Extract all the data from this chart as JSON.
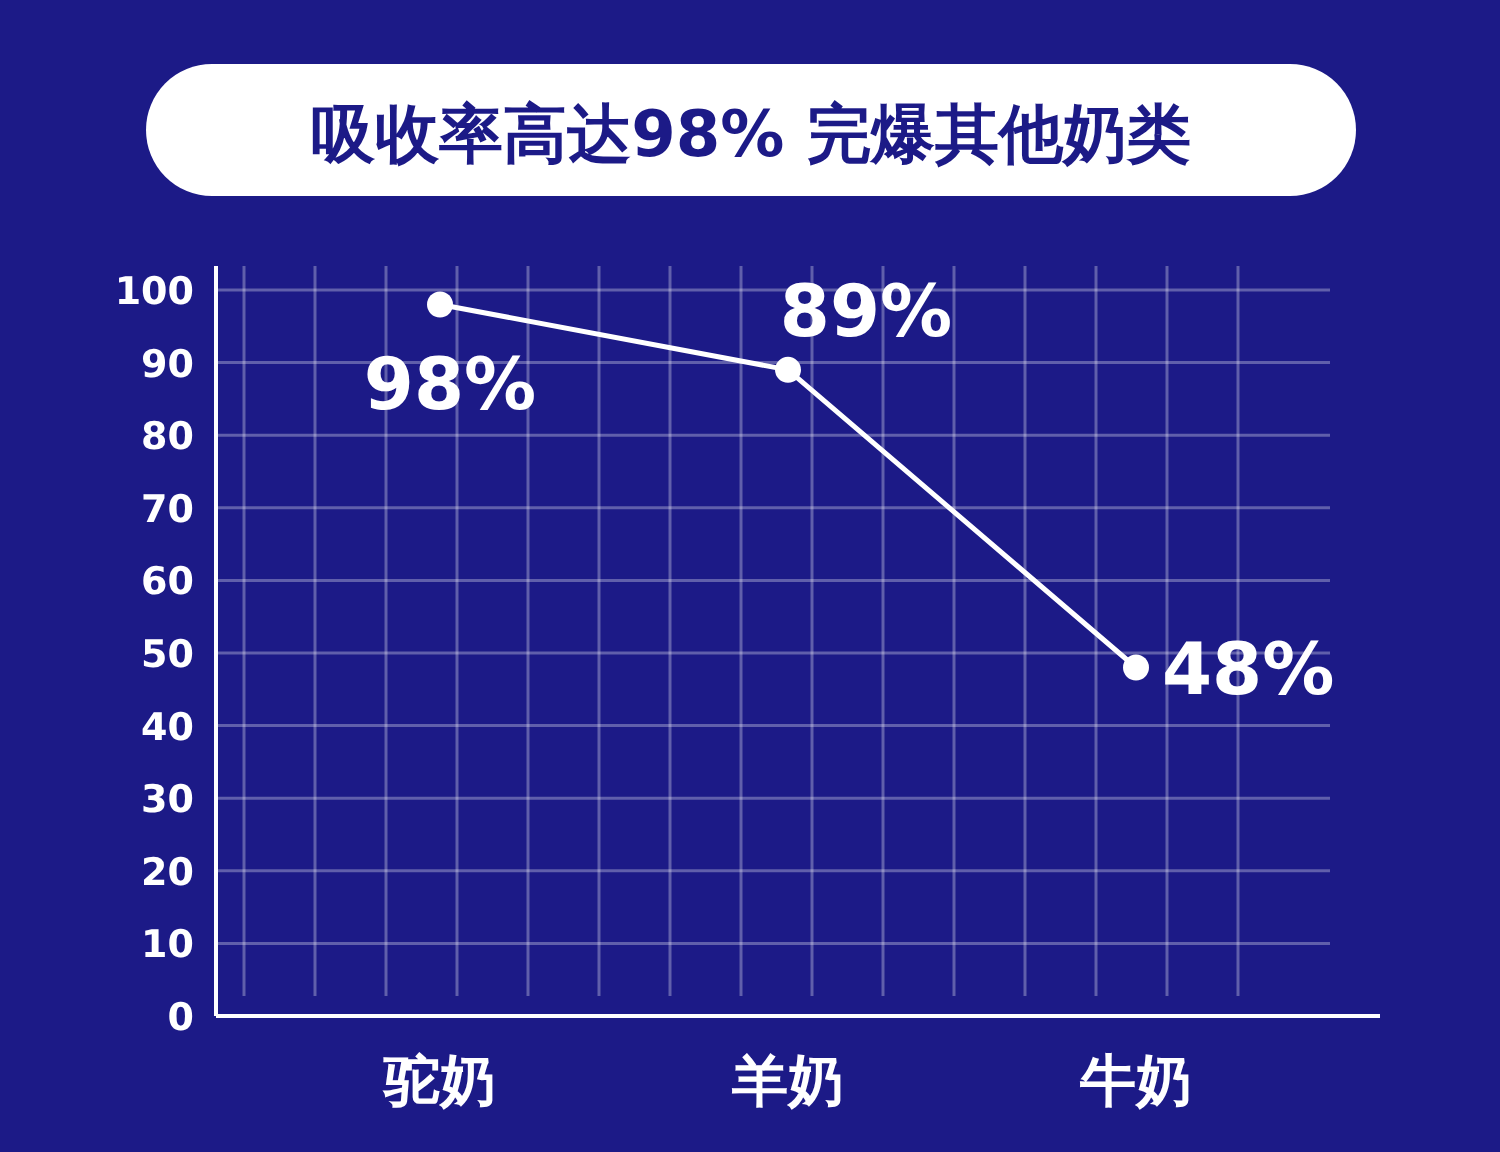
{
  "chart_data": {
    "type": "line",
    "title": "吸收率高达98% 完爆其他奶类",
    "categories": [
      "驼奶",
      "羊奶",
      "牛奶"
    ],
    "series": [
      {
        "color": "#ffffff",
        "values": [
          98,
          89,
          48
        ],
        "value_labels": [
          "98%",
          "89%",
          "48%"
        ]
      }
    ],
    "ylim": [
      0,
      100
    ],
    "yticks": [
      0,
      10,
      20,
      30,
      40,
      50,
      60,
      70,
      80,
      90,
      100
    ],
    "grid": true,
    "marker": "circle",
    "line_style": "solid"
  }
}
